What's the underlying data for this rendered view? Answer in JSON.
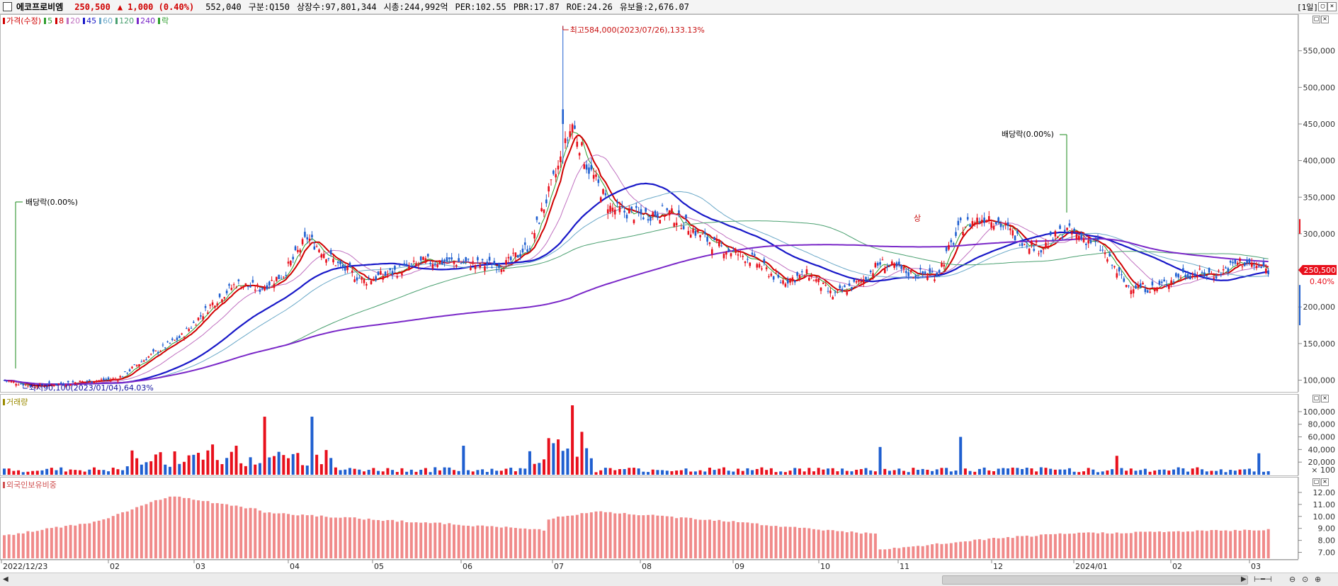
{
  "header": {
    "name": "에코프로비엠",
    "price": "250,500",
    "change": "▲ 1,000 (0.40%)",
    "volume": "552,040",
    "items": [
      "구분:Q150",
      "상장수:97,801,344",
      "시총:244,992억",
      "PER:102.55",
      "PBR:17.87",
      "ROE:24.26",
      "유보율:2,676.07"
    ],
    "period": "[1일]"
  },
  "legend": [
    {
      "label": "가격(수정)",
      "color": "#d00000"
    },
    {
      "label": "5",
      "color": "#2e9e2e"
    },
    {
      "label": "8",
      "color": "#d00000"
    },
    {
      "label": "20",
      "color": "#c070c0"
    },
    {
      "label": "45",
      "color": "#1818c8"
    },
    {
      "label": "60",
      "color": "#6aa8c8"
    },
    {
      "label": "120",
      "color": "#4aa070"
    },
    {
      "label": "240",
      "color": "#7a28c8"
    },
    {
      "label": "락",
      "color": "#2e9e2e"
    }
  ],
  "colors": {
    "up": "#e8101c",
    "down": "#1f5fd0",
    "foreign": "#f08a8a",
    "annot_high": "#c81010",
    "annot_div": "#1a8a1a",
    "annot_low": "#1010a0"
  },
  "annotations": {
    "high": "최고584,000(2023/07/26),133.13%",
    "low": "최저90,100(2023/01/04),64.03%",
    "div1": "배당락(0.00%)",
    "div2": "배당락(0.00%)",
    "sang": "상",
    "last_price": "250,500",
    "last_pct": "0.40%"
  },
  "panels": {
    "volume_title": "거래량",
    "foreign_title": "외국인보유비중"
  },
  "chart_data": [
    {
      "type": "candlestick",
      "title": "",
      "ylim": [
        85000,
        600000
      ],
      "yticks": [
        "100,000",
        "150,000",
        "200,000",
        "250,000",
        "300,000",
        "350,000",
        "400,000",
        "450,000",
        "500,000",
        "550,000"
      ],
      "x_labels": [
        "2022/12/23",
        "02",
        "03",
        "04",
        "05",
        "06",
        "07",
        "08",
        "09",
        "10",
        "11",
        "12",
        "2024/01",
        "02",
        "03"
      ],
      "key_points": [
        {
          "date": "2022/12/23",
          "close": 100000
        },
        {
          "date": "2023/01/04",
          "low": 90100
        },
        {
          "date": "2023/02",
          "close": 102000
        },
        {
          "date": "2023/03",
          "close": 205000
        },
        {
          "date": "2023/04",
          "close": 240000
        },
        {
          "date": "2023/04 mid",
          "close": 295000
        },
        {
          "date": "2023/05",
          "close": 240000
        },
        {
          "date": "2023/06",
          "close": 262000
        },
        {
          "date": "2023/07",
          "close": 258000
        },
        {
          "date": "2023/07/26",
          "high": 584000,
          "close": 450000
        },
        {
          "date": "2023/08",
          "close": 395000
        },
        {
          "date": "2023/08 end",
          "close": 335000
        },
        {
          "date": "2023/09",
          "close": 320000
        },
        {
          "date": "2023/10",
          "close": 255000
        },
        {
          "date": "2023/11",
          "close": 205000
        },
        {
          "date": "2023/11 mid",
          "close": 260000
        },
        {
          "date": "2023/12",
          "close": 245000
        },
        {
          "date": "2023/12 mid",
          "close": 320000
        },
        {
          "date": "2024/01",
          "close": 282000
        },
        {
          "date": "2024/01 end",
          "close": 275000
        },
        {
          "date": "2024/02",
          "close": 225000
        },
        {
          "date": "2024/02 end",
          "close": 245000
        },
        {
          "date": "2024/03",
          "close": 250500
        }
      ]
    },
    {
      "type": "bar",
      "title": "거래량",
      "ylim": [
        0,
        110000
      ],
      "yticks": [
        "20,000",
        "40,000",
        "60,000",
        "80,000",
        "100,000"
      ],
      "unit_label": "× 100"
    },
    {
      "type": "bar",
      "title": "외국인보유비중",
      "ylim": [
        6.5,
        13
      ],
      "yticks": [
        "7.00",
        "8.00",
        "9.00",
        "10.00",
        "11.00",
        "12.00"
      ]
    }
  ]
}
